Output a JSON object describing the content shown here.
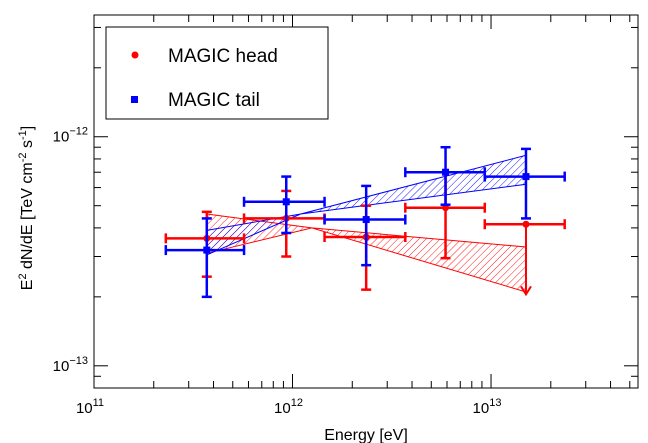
{
  "chart_data": {
    "type": "scatter",
    "title": "",
    "xlabel": "Energy [eV]",
    "ylabel": {
      "base": "E",
      "sup1": "2",
      "mid": " dN/dE [TeV cm",
      "sup2": "-2",
      "mid2": " s",
      "sup3": "-1",
      "end": "]"
    },
    "xscale": "log",
    "yscale": "log",
    "xlim": [
      100000000000.0,
      55000000000000.0
    ],
    "ylim": [
      8e-14,
      3.4e-12
    ],
    "x_ticks": [
      {
        "value": 100000000000.0,
        "base": "10",
        "exp": "11"
      },
      {
        "value": 1000000000000.0,
        "base": "10",
        "exp": "12"
      },
      {
        "value": 10000000000000.0,
        "base": "10",
        "exp": "13"
      }
    ],
    "y_ticks": [
      {
        "value": 1e-13,
        "base": "10",
        "exp": "−13"
      },
      {
        "value": 1e-12,
        "base": "10",
        "exp": "−12"
      }
    ],
    "grid": false,
    "legend": {
      "position": "top-left"
    },
    "series": [
      {
        "name": "MAGIC head",
        "color": "#ff0000",
        "marker": "circle",
        "points": [
          {
            "x": 370000000000.0,
            "y": 3.6e-13,
            "xlo": 230000000000.0,
            "xhi": 570000000000.0,
            "ylo": 2.45e-13,
            "yhi": 4.7e-13
          },
          {
            "x": 930000000000.0,
            "y": 4.4e-13,
            "xlo": 570000000000.0,
            "xhi": 1450000000000.0,
            "ylo": 3e-13,
            "yhi": 5.8e-13
          },
          {
            "x": 2350000000000.0,
            "y": 3.65e-13,
            "xlo": 1450000000000.0,
            "xhi": 3700000000000.0,
            "ylo": 2.15e-13,
            "yhi": 5e-13
          },
          {
            "x": 5900000000000.0,
            "y": 4.9e-13,
            "xlo": 3700000000000.0,
            "xhi": 9300000000000.0,
            "ylo": 2.95e-13,
            "yhi": 7e-13
          },
          {
            "x": 15000000000000.0,
            "y": 4.15e-13,
            "xlo": 9300000000000.0,
            "xhi": 23500000000000.0,
            "ylo": null,
            "yhi": null,
            "upper_limit_to": 2.05e-13
          }
        ],
        "band": {
          "upper": [
            [
              370000000000.0,
              4.6e-13
            ],
            [
              15000000000000.0,
              3.3e-13
            ]
          ],
          "lower": [
            [
              370000000000.0,
              3.1e-13
            ],
            [
              15000000000000.0,
              2.1e-13
            ]
          ],
          "waist": [
            1250000000000.0,
            4e-13
          ]
        }
      },
      {
        "name": "MAGIC tail",
        "color": "#0000ff",
        "marker": "square",
        "points": [
          {
            "x": 370000000000.0,
            "y": 3.2e-13,
            "xlo": 230000000000.0,
            "xhi": 570000000000.0,
            "ylo": 2e-13,
            "yhi": 4.4e-13
          },
          {
            "x": 930000000000.0,
            "y": 5.2e-13,
            "xlo": 570000000000.0,
            "xhi": 1450000000000.0,
            "ylo": 3.8e-13,
            "yhi": 6.7e-13
          },
          {
            "x": 2350000000000.0,
            "y": 4.35e-13,
            "xlo": 1450000000000.0,
            "xhi": 3700000000000.0,
            "ylo": 2.75e-13,
            "yhi": 6.1e-13
          },
          {
            "x": 5900000000000.0,
            "y": 7e-13,
            "xlo": 3700000000000.0,
            "xhi": 9300000000000.0,
            "ylo": 5.05e-13,
            "yhi": 9e-13
          },
          {
            "x": 15000000000000.0,
            "y": 6.7e-13,
            "xlo": 9300000000000.0,
            "xhi": 23500000000000.0,
            "ylo": 4.4e-13,
            "yhi": 8.85e-13
          }
        ],
        "band": {
          "upper": [
            [
              370000000000.0,
              3.9e-13
            ],
            [
              15000000000000.0,
              8.3e-13
            ]
          ],
          "lower": [
            [
              370000000000.0,
              3.05e-13
            ],
            [
              15000000000000.0,
              6.2e-13
            ]
          ],
          "waist": [
            1100000000000.0,
            4.6e-13
          ]
        }
      }
    ]
  }
}
